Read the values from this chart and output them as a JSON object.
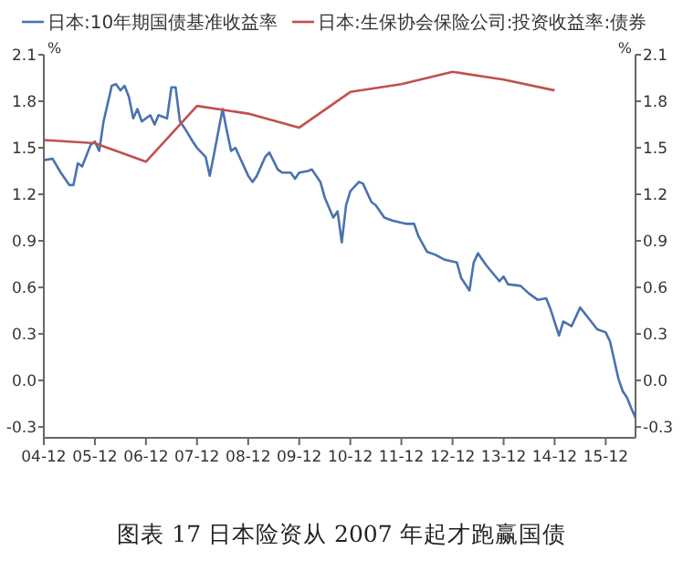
{
  "chart_data": {
    "type": "line",
    "title": "图表 17 日本险资从 2007 年起才跑赢国债",
    "ylabel": "%",
    "y2label": "%",
    "legend": "top",
    "grid": false,
    "xlim": [
      "2004-12",
      "2016-07"
    ],
    "xticks": [
      {
        "value": "2004-12",
        "label": "04-12"
      },
      {
        "value": "2005-12",
        "label": "05-12"
      },
      {
        "value": "2006-12",
        "label": "06-12"
      },
      {
        "value": "2007-12",
        "label": "07-12"
      },
      {
        "value": "2008-12",
        "label": "08-12"
      },
      {
        "value": "2009-12",
        "label": "09-12"
      },
      {
        "value": "2010-12",
        "label": "10-12"
      },
      {
        "value": "2011-12",
        "label": "11-12"
      },
      {
        "value": "2012-12",
        "label": "12-12"
      },
      {
        "value": "2013-12",
        "label": "13-12"
      },
      {
        "value": "2014-12",
        "label": "14-12"
      },
      {
        "value": "2015-12",
        "label": "15-12"
      }
    ],
    "ylim": [
      -0.37,
      2.1
    ],
    "yticks": [
      -0.3,
      {
        "value": 0,
        "label": "0.0"
      },
      0.3,
      0.6,
      0.9,
      1.2,
      1.5,
      1.8,
      2.1
    ],
    "y2lim": [
      -0.37,
      2.1
    ],
    "y2ticks": [
      -0.3,
      {
        "value": 0,
        "label": "0.0"
      },
      0.3,
      0.6,
      0.9,
      1.2,
      1.5,
      1.8,
      2.1
    ],
    "series": [
      {
        "name": "日本:10年期国债基准收益率",
        "color": "#4a72b0",
        "x": [
          "2004-12",
          "2005-02",
          "2005-04",
          "2005-06",
          "2005-07",
          "2005-08",
          "2005-09",
          "2005-11",
          "2005-12",
          "2006-01",
          "2006-02",
          "2006-04",
          "2006-05",
          "2006-06",
          "2006-07",
          "2006-08",
          "2006-09",
          "2006-10",
          "2006-11",
          "2007-01",
          "2007-02",
          "2007-03",
          "2007-05",
          "2007-06",
          "2007-07",
          "2007-08",
          "2007-09",
          "2007-11",
          "2007-12",
          "2008-02",
          "2008-03",
          "2008-04",
          "2008-06",
          "2008-07",
          "2008-08",
          "2008-09",
          "2008-10",
          "2008-12",
          "2009-01",
          "2009-02",
          "2009-04",
          "2009-05",
          "2009-07",
          "2009-08",
          "2009-10",
          "2009-11",
          "2009-12",
          "2010-02",
          "2010-03",
          "2010-05",
          "2010-06",
          "2010-08",
          "2010-09",
          "2010-10",
          "2010-11",
          "2010-12",
          "2011-02",
          "2011-03",
          "2011-05",
          "2011-06",
          "2011-08",
          "2011-10",
          "2012-01",
          "2012-03",
          "2012-04",
          "2012-06",
          "2012-08",
          "2012-10",
          "2013-01",
          "2013-02",
          "2013-04",
          "2013-05",
          "2013-06",
          "2013-07",
          "2013-08",
          "2013-11",
          "2013-12",
          "2014-01",
          "2014-04",
          "2014-06",
          "2014-08",
          "2014-10",
          "2014-11",
          "2015-01",
          "2015-02",
          "2015-04",
          "2015-06",
          "2015-08",
          "2015-10",
          "2015-12",
          "2016-01",
          "2016-03",
          "2016-04",
          "2016-05",
          "2016-06",
          "2016-07"
        ],
        "values": [
          1.42,
          1.43,
          1.34,
          1.26,
          1.26,
          1.4,
          1.38,
          1.52,
          1.54,
          1.48,
          1.67,
          1.9,
          1.91,
          1.87,
          1.9,
          1.83,
          1.69,
          1.75,
          1.67,
          1.71,
          1.65,
          1.71,
          1.69,
          1.89,
          1.89,
          1.67,
          1.63,
          1.54,
          1.5,
          1.44,
          1.32,
          1.46,
          1.75,
          1.61,
          1.48,
          1.5,
          1.44,
          1.32,
          1.28,
          1.32,
          1.44,
          1.47,
          1.36,
          1.34,
          1.34,
          1.3,
          1.34,
          1.35,
          1.36,
          1.28,
          1.18,
          1.05,
          1.09,
          0.89,
          1.13,
          1.22,
          1.28,
          1.27,
          1.15,
          1.13,
          1.05,
          1.03,
          1.01,
          1.01,
          0.93,
          0.83,
          0.81,
          0.78,
          0.76,
          0.66,
          0.58,
          0.76,
          0.82,
          0.78,
          0.74,
          0.64,
          0.67,
          0.62,
          0.61,
          0.56,
          0.52,
          0.53,
          0.46,
          0.29,
          0.38,
          0.35,
          0.47,
          0.4,
          0.33,
          0.31,
          0.25,
          0.01,
          -0.07,
          -0.11,
          -0.18,
          -0.24
        ]
      },
      {
        "name": "日本:生保协会保险公司:投资收益率:债券",
        "color": "#c0504d",
        "x": [
          "2004-12",
          "2005-12",
          "2006-12",
          "2007-12",
          "2008-12",
          "2009-12",
          "2010-12",
          "2011-12",
          "2012-12",
          "2013-12",
          "2014-12"
        ],
        "values": [
          1.55,
          1.53,
          1.41,
          1.77,
          1.72,
          1.63,
          1.86,
          1.91,
          1.99,
          1.94,
          1.87
        ]
      }
    ]
  }
}
